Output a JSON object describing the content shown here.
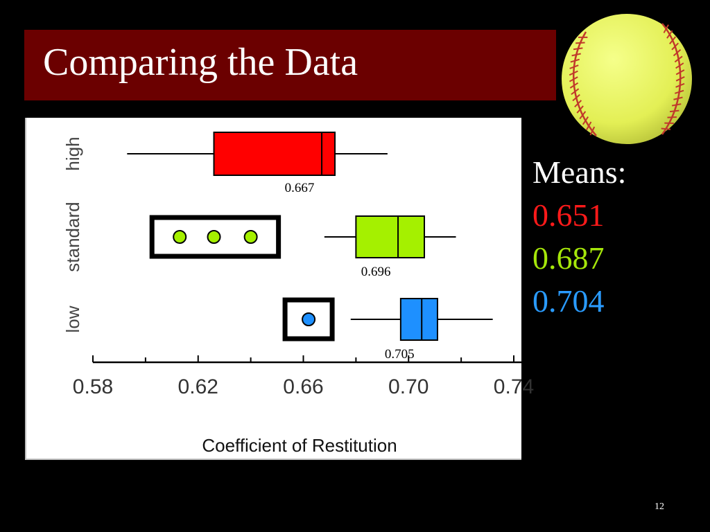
{
  "slide": {
    "title": "Comparing the Data",
    "page_number": "12"
  },
  "means": {
    "label": "Means:",
    "values": [
      {
        "text": "0.651",
        "color": "#ff1a1a"
      },
      {
        "text": "0.687",
        "color": "#a5e60a"
      },
      {
        "text": "0.704",
        "color": "#2a9bff"
      }
    ]
  },
  "softball": {
    "icon": "softball-icon",
    "color": "#e6f25a",
    "stitch_color": "#c0392b"
  },
  "chart_data": {
    "type": "boxplot",
    "orientation": "horizontal",
    "xlabel": "Coefficient of Restitution",
    "ylabel": "",
    "xticks": [
      "0.58",
      "0.62",
      "0.66",
      "0.70",
      "0.74"
    ],
    "xlim": [
      0.58,
      0.74
    ],
    "grid": false,
    "categories": [
      "low",
      "standard",
      "high"
    ],
    "series": [
      {
        "category": "high",
        "color": "#ff0000",
        "whisker_low": 0.593,
        "q1": 0.626,
        "median": 0.667,
        "q3": 0.672,
        "whisker_high": 0.692,
        "outliers": [],
        "median_label": "0.667"
      },
      {
        "category": "standard",
        "color": "#a5f000",
        "whisker_low": 0.668,
        "q1": 0.68,
        "median": 0.696,
        "q3": 0.706,
        "whisker_high": 0.718,
        "outliers": [
          0.613,
          0.626,
          0.64
        ],
        "median_label": "0.696"
      },
      {
        "category": "low",
        "color": "#1e90ff",
        "whisker_low": 0.678,
        "q1": 0.697,
        "median": 0.705,
        "q3": 0.711,
        "whisker_high": 0.732,
        "outliers": [
          0.662
        ],
        "median_label": "0.705"
      }
    ]
  }
}
